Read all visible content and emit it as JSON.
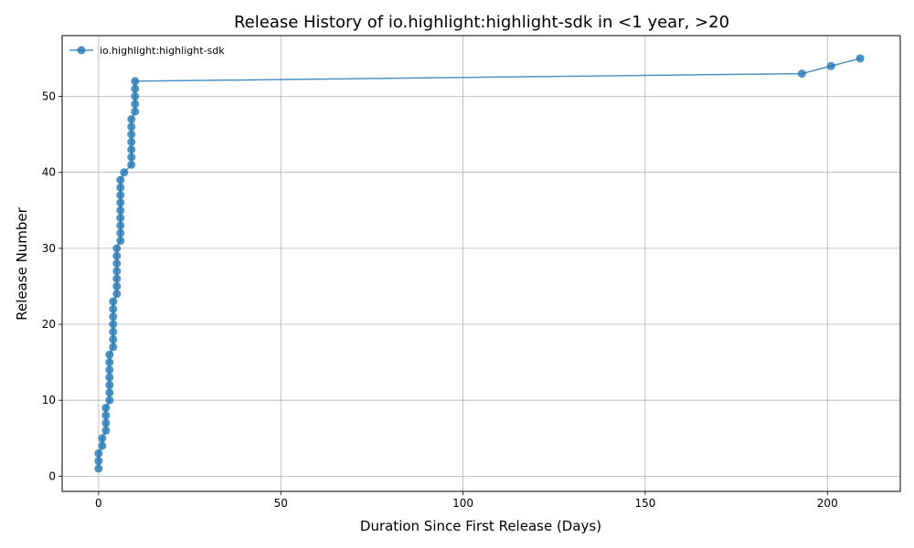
{
  "chart_data": {
    "type": "line",
    "title": "Release History of io.highlight:highlight-sdk in <1 year, >20",
    "xlabel": "Duration Since First Release (Days)",
    "ylabel": "Release Number",
    "xlim": [
      -10,
      220
    ],
    "ylim": [
      -2,
      58
    ],
    "xticks": [
      0,
      50,
      100,
      150,
      200
    ],
    "yticks": [
      0,
      10,
      20,
      30,
      40,
      50
    ],
    "grid": true,
    "legend_position": "top-left",
    "series": [
      {
        "name": "io.highlight:highlight-sdk",
        "color": "#1f77b4",
        "marker": "circle",
        "x": [
          0,
          0,
          0,
          1,
          1,
          2,
          2,
          2,
          2,
          3,
          3,
          3,
          3,
          3,
          3,
          3,
          4,
          4,
          4,
          4,
          4,
          4,
          4,
          5,
          5,
          5,
          5,
          5,
          5,
          5,
          6,
          6,
          6,
          6,
          6,
          6,
          6,
          6,
          6,
          7,
          9,
          9,
          9,
          9,
          9,
          9,
          9,
          10,
          10,
          10,
          10,
          10,
          193,
          201,
          209
        ],
        "y": [
          1,
          2,
          3,
          4,
          5,
          6,
          7,
          8,
          9,
          10,
          11,
          12,
          13,
          14,
          15,
          16,
          17,
          18,
          19,
          20,
          21,
          22,
          23,
          24,
          25,
          26,
          27,
          28,
          29,
          30,
          31,
          32,
          33,
          34,
          35,
          36,
          37,
          38,
          39,
          40,
          41,
          42,
          43,
          44,
          45,
          46,
          47,
          48,
          49,
          50,
          51,
          52,
          53,
          54,
          55
        ]
      }
    ]
  }
}
